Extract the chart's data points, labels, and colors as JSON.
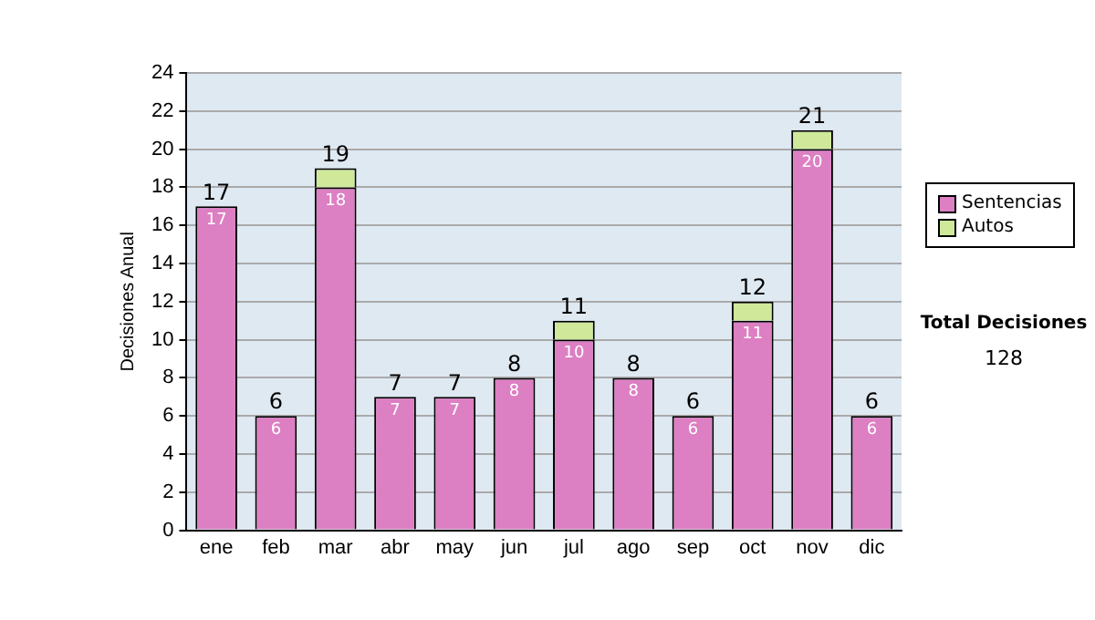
{
  "chart_data": {
    "type": "bar",
    "stacked": true,
    "ylabel": "Decisiones Anual",
    "categories": [
      "ene",
      "feb",
      "mar",
      "abr",
      "may",
      "jun",
      "jul",
      "ago",
      "sep",
      "oct",
      "nov",
      "dic"
    ],
    "series": [
      {
        "name": "Sentencias",
        "color": "#dd7fc3",
        "values": [
          17,
          6,
          18,
          7,
          7,
          8,
          10,
          8,
          6,
          11,
          20,
          6
        ],
        "value_labels": [
          "17",
          "6",
          "18",
          "7",
          "7",
          "8",
          "10",
          "8",
          "6",
          "11",
          "20",
          "6"
        ]
      },
      {
        "name": "Autos",
        "color": "#cfe89a",
        "values": [
          0,
          0,
          1,
          0,
          0,
          0,
          1,
          0,
          0,
          1,
          1,
          0
        ]
      }
    ],
    "totals": [
      "17",
      "6",
      "19",
      "7",
      "7",
      "8",
      "11",
      "8",
      "6",
      "12",
      "21",
      "6"
    ],
    "ylim": [
      0,
      24
    ],
    "yticks": [
      0,
      2,
      4,
      6,
      8,
      10,
      12,
      14,
      16,
      18,
      20,
      22,
      24
    ],
    "grid": "y",
    "legend": "right",
    "annotations": [
      "Total Decisiones",
      "128"
    ]
  }
}
